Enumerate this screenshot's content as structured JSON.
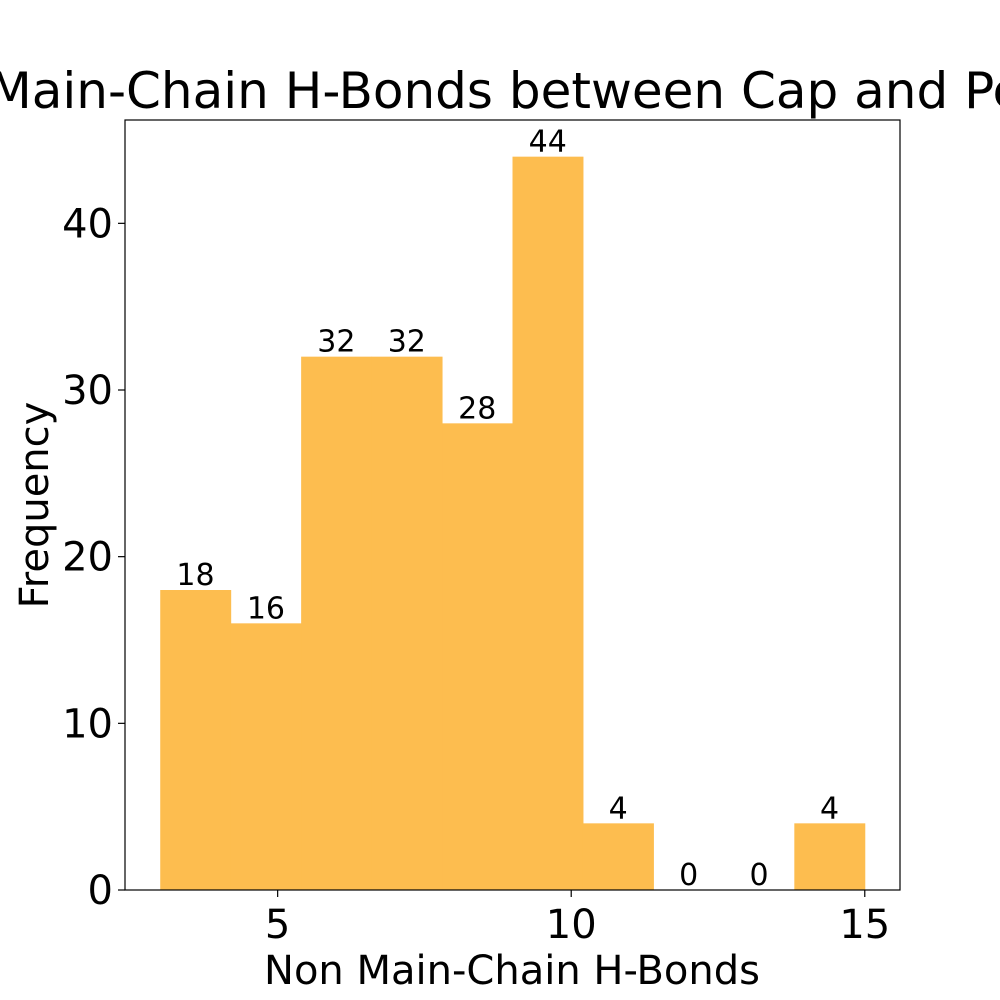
{
  "chart_data": {
    "type": "bar",
    "title": "Non Main-Chain H-Bonds between Cap and Peptide",
    "xlabel": "Non Main-Chain H-Bonds",
    "ylabel": "Frequency",
    "bin_edges": [
      3.0,
      4.2,
      5.4,
      6.6,
      7.8,
      9.0,
      10.2,
      11.4,
      12.6,
      13.8,
      15.0
    ],
    "values": [
      18,
      16,
      32,
      32,
      28,
      44,
      4,
      0,
      0,
      4
    ],
    "data_labels": [
      "18",
      "16",
      "32",
      "32",
      "28",
      "44",
      "4",
      "0",
      "0",
      "4"
    ],
    "x_ticks": [
      5,
      10,
      15
    ],
    "x_tick_labels": [
      "5",
      "10",
      "15"
    ],
    "y_ticks": [
      0,
      10,
      20,
      30,
      40
    ],
    "y_tick_labels": [
      "0",
      "10",
      "20",
      "30",
      "40"
    ],
    "xlim": [
      2.4,
      15.6
    ],
    "ylim": [
      0,
      46.2
    ],
    "bar_color": "#FDBD4F",
    "grid": false,
    "legend": "none"
  }
}
